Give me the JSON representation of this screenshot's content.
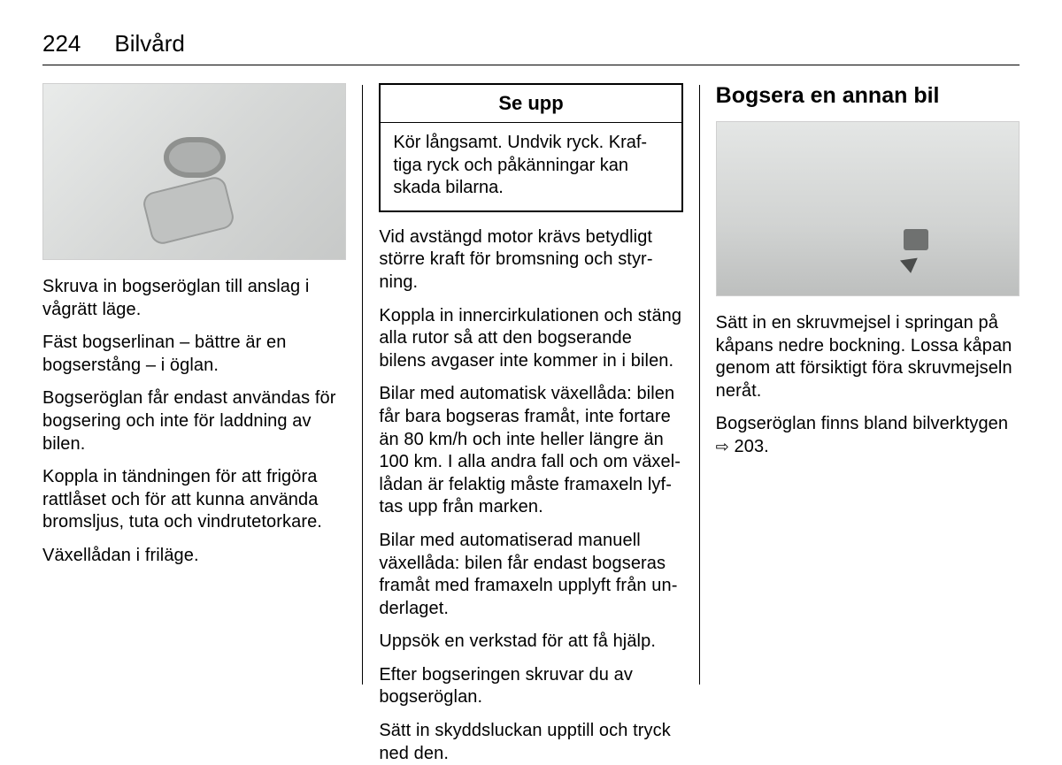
{
  "header": {
    "page_number": "224",
    "section": "Bilvård"
  },
  "col1": {
    "paragraphs": [
      "Skruva in bogseröglan till anslag i vågrätt läge.",
      "Fäst bogserlinan – bättre är en bogserstång – i öglan.",
      "Bogseröglan får endast användas för bogsering och inte för laddning av bilen.",
      "Koppla in tändningen för att frigöra rattlåset och för att kunna använda bromsljus, tuta och vindrutetorkare.",
      "Växellådan i friläge."
    ]
  },
  "col2": {
    "warning": {
      "title": "Se upp",
      "body": "Kör långsamt. Undvik ryck. Kraf­tiga ryck och påkänningar kan skada bilarna."
    },
    "paragraphs": [
      "Vid avstängd motor krävs betydligt större kraft för bromsning och styr­ning.",
      "Koppla in innercirkulationen och stäng alla rutor så att den bogserande bilens avgaser inte kommer in i bilen.",
      "Bilar med automatisk växellåda: bilen får bara bogseras framåt, inte fortare än 80 km/h och inte heller längre än 100 km. I alla andra fall och om växel­lådan är felaktig måste framaxeln lyf­tas upp från marken.",
      "Bilar med automatiserad manuell växellåda: bilen får endast bogseras framåt med framaxeln upplyft från un­derlaget.",
      "Uppsök en verkstad för att få hjälp.",
      "Efter bogseringen skruvar du av bogseröglan.",
      "Sätt in skyddsluckan upptill och tryck ned den."
    ]
  },
  "col3": {
    "heading": "Bogsera en annan bil",
    "paragraphs": [
      "Sätt in en skruvmejsel i springan på kåpans nedre bockning. Lossa kåpan genom att försiktigt föra skruvmejseln neråt."
    ],
    "xref_text": "Bogseröglan finns bland bilverktygen ",
    "xref_page": "203."
  }
}
